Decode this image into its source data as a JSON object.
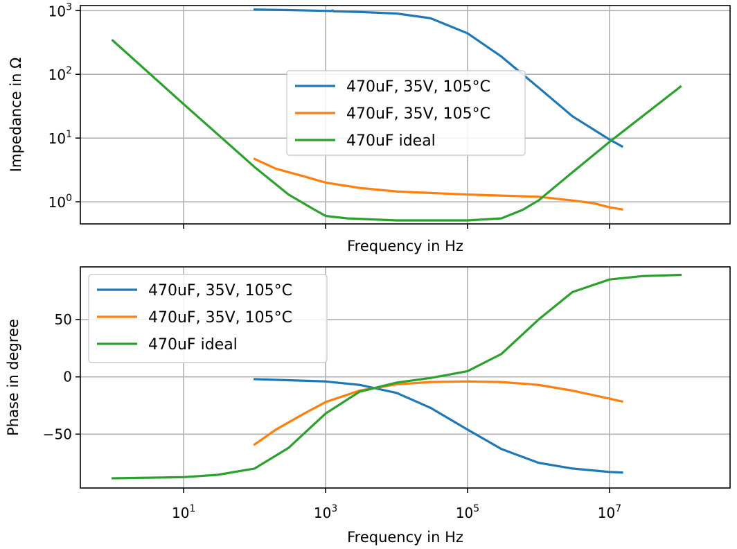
{
  "chart_data": [
    {
      "type": "line",
      "xlabel": "Frequency in Hz",
      "ylabel": "Impedance in Ω",
      "xscale": "log",
      "yscale": "log",
      "xlim": [
        0.35,
        500000000
      ],
      "ylim": [
        0.45,
        1200
      ],
      "xticks": [
        10,
        1000,
        100000,
        10000000
      ],
      "yticks": [
        1,
        10,
        100,
        1000
      ],
      "ytick_labels": [
        {
          "base": "10",
          "exp": "0"
        },
        {
          "base": "10",
          "exp": "1"
        },
        {
          "base": "10",
          "exp": "2"
        },
        {
          "base": "10",
          "exp": "3"
        }
      ],
      "show_xtick_labels": false,
      "grid": true,
      "legend_position": "center",
      "series": [
        {
          "name": "470uF, 35V, 105°C",
          "color": "#1f77b4",
          "points": [
            [
              100,
              1040
            ],
            [
              300,
              1020
            ],
            [
              1000,
              990
            ],
            [
              1200,
              985
            ],
            [
              1250,
              1005
            ],
            [
              1300,
              975
            ],
            [
              3000,
              950
            ],
            [
              10000,
              900
            ],
            [
              30000,
              760
            ],
            [
              100000,
              440
            ],
            [
              300000,
              190
            ],
            [
              1000000,
              62
            ],
            [
              3000000,
              22
            ],
            [
              10000000,
              9.5
            ],
            [
              15000000,
              7.4
            ]
          ]
        },
        {
          "name": "470uF, 35V, 105°C",
          "color": "#ff7f0e",
          "points": [
            [
              100,
              4.7
            ],
            [
              200,
              3.3
            ],
            [
              500,
              2.5
            ],
            [
              1000,
              2.0
            ],
            [
              3000,
              1.65
            ],
            [
              10000,
              1.45
            ],
            [
              100000,
              1.3
            ],
            [
              1000000,
              1.2
            ],
            [
              3000000,
              1.05
            ],
            [
              6000000,
              0.95
            ],
            [
              10000000,
              0.82
            ],
            [
              15000000,
              0.76
            ]
          ]
        },
        {
          "name": "470uF ideal",
          "color": "#2ca02c",
          "points": [
            [
              1,
              340
            ],
            [
              10,
              34
            ],
            [
              30,
              11.5
            ],
            [
              100,
              3.5
            ],
            [
              300,
              1.3
            ],
            [
              700,
              0.75
            ],
            [
              1000,
              0.6
            ],
            [
              2000,
              0.55
            ],
            [
              10000,
              0.51
            ],
            [
              100000,
              0.51
            ],
            [
              300000,
              0.55
            ],
            [
              600000,
              0.75
            ],
            [
              1000000,
              1.05
            ],
            [
              3000000,
              2.9
            ],
            [
              10000000,
              8.7
            ],
            [
              100000000,
              64
            ]
          ]
        }
      ]
    },
    {
      "type": "line",
      "xlabel": "Frequency in Hz",
      "ylabel": "Phase in degree",
      "xscale": "log",
      "yscale": "linear",
      "xlim": [
        0.35,
        500000000
      ],
      "ylim": [
        -97,
        96
      ],
      "xticks": [
        10,
        1000,
        100000,
        10000000
      ],
      "xtick_labels": [
        {
          "base": "10",
          "exp": "1"
        },
        {
          "base": "10",
          "exp": "3"
        },
        {
          "base": "10",
          "exp": "5"
        },
        {
          "base": "10",
          "exp": "7"
        }
      ],
      "yticks": [
        50,
        0,
        -50
      ],
      "ytick_labels": [
        "50",
        "0",
        "−50"
      ],
      "show_xtick_labels": true,
      "grid": true,
      "legend_position": "top-left",
      "series": [
        {
          "name": "470uF, 35V, 105°C",
          "color": "#1f77b4",
          "points": [
            [
              100,
              -2
            ],
            [
              1000,
              -4
            ],
            [
              3000,
              -7
            ],
            [
              10000,
              -14
            ],
            [
              30000,
              -27
            ],
            [
              100000,
              -46
            ],
            [
              300000,
              -63
            ],
            [
              1000000,
              -75
            ],
            [
              3000000,
              -80
            ],
            [
              10000000,
              -83
            ],
            [
              15000000,
              -83.5
            ]
          ]
        },
        {
          "name": "470uF, 35V, 105°C",
          "color": "#ff7f0e",
          "points": [
            [
              100,
              -59
            ],
            [
              200,
              -46
            ],
            [
              500,
              -32
            ],
            [
              1000,
              -22
            ],
            [
              3000,
              -12
            ],
            [
              10000,
              -6.5
            ],
            [
              30000,
              -4.5
            ],
            [
              100000,
              -4
            ],
            [
              300000,
              -4.5
            ],
            [
              1000000,
              -7
            ],
            [
              3000000,
              -12
            ],
            [
              10000000,
              -19
            ],
            [
              15000000,
              -21.5
            ]
          ]
        },
        {
          "name": "470uF ideal",
          "color": "#2ca02c",
          "points": [
            [
              1,
              -88.5
            ],
            [
              10,
              -87.5
            ],
            [
              30,
              -85.5
            ],
            [
              100,
              -80
            ],
            [
              300,
              -62
            ],
            [
              1000,
              -32
            ],
            [
              3000,
              -13
            ],
            [
              10000,
              -5
            ],
            [
              30000,
              -1
            ],
            [
              100000,
              5
            ],
            [
              300000,
              20
            ],
            [
              1000000,
              50
            ],
            [
              3000000,
              74
            ],
            [
              10000000,
              85
            ],
            [
              30000000,
              88
            ],
            [
              100000000,
              89
            ]
          ]
        }
      ]
    }
  ]
}
